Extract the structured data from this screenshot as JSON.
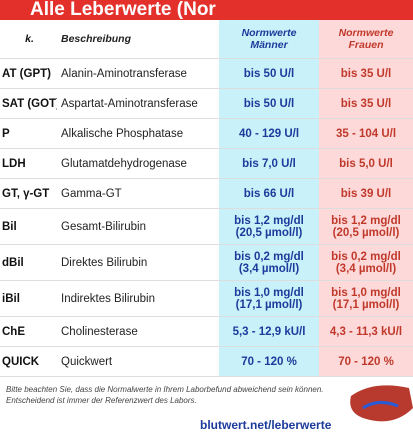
{
  "header": {
    "title": "Alle Leberwerte (Nor"
  },
  "table": {
    "columns": [
      "k.",
      "Beschreibung",
      [
        "Normwerte",
        "Männer"
      ],
      [
        "Normwerte",
        "Frauen"
      ]
    ],
    "rows": [
      [
        "AT (GPT)",
        "Alanin-Aminotransferase",
        [
          "bis 50 U/l"
        ],
        [
          "bis 35 U/l"
        ]
      ],
      [
        "SAT (GOT)",
        "Aspartat-Aminotransferase",
        [
          "bis 50 U/l"
        ],
        [
          "bis 35 U/l"
        ]
      ],
      [
        "P",
        "Alkalische Phosphatase",
        [
          "40 - 129 U/l"
        ],
        [
          "35 - 104 U/l"
        ]
      ],
      [
        "LDH",
        "Glutamatdehydrogenase",
        [
          "bis 7,0 U/l"
        ],
        [
          "bis 5,0 U/l"
        ]
      ],
      [
        "GT, γ-GT",
        "Gamma-GT",
        [
          "bis 66 U/l"
        ],
        [
          "bis 39 U/l"
        ]
      ],
      [
        "Bil",
        "Gesamt-Bilirubin",
        [
          "bis 1,2 mg/dl",
          "(20,5 µmol/l)"
        ],
        [
          "bis 1,2 mg/dl",
          "(20,5 µmol/l)"
        ]
      ],
      [
        "dBil",
        "Direktes Bilirubin",
        [
          "bis 0,2 mg/dl",
          "(3,4 µmol/l)"
        ],
        [
          "bis 0,2 mg/dl",
          "(3,4 µmol/l)"
        ]
      ],
      [
        "iBil",
        "Indirektes Bilirubin",
        [
          "bis 1,0 mg/dl",
          "(17,1 µmol/l)"
        ],
        [
          "bis 1,0 mg/dl",
          "(17,1 µmol/l)"
        ]
      ],
      [
        "ChE",
        "Cholinesterase",
        [
          "5,3 - 12,9 kU/l"
        ],
        [
          "4,3 - 11,3 kU/l"
        ]
      ],
      [
        "QUICK",
        "Quickwert",
        [
          "70 - 120 %"
        ],
        [
          "70 - 120 %"
        ]
      ]
    ]
  },
  "footer": {
    "note": "Bitte beachten Sie, dass die Normalwerte in Ihrem Laborbefund abweichend sein können. Entscheidend ist immer der Referenzwert des Labors.",
    "url": "blutwert.net/leberwerte"
  }
}
